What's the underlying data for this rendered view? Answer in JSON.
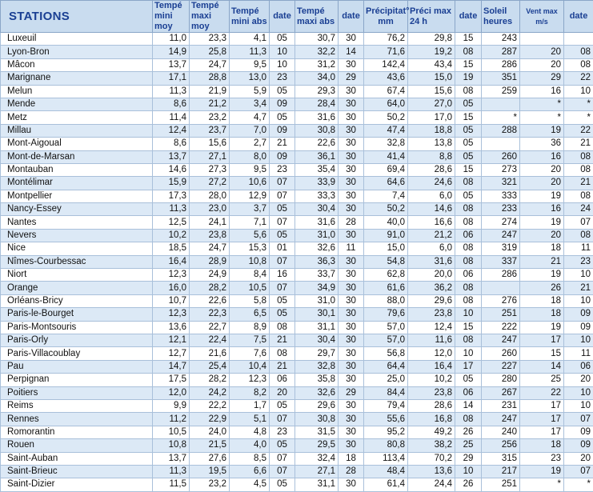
{
  "headers": {
    "stations": "STATIONS",
    "tmin_moy": "Tempé mini moy",
    "tmax_moy": "Tempé maxi moy",
    "tmin_abs": "Tempé mini abs",
    "date1": "date",
    "tmax_abs": "Tempé maxi abs",
    "date2": "date",
    "precip": "Précipitat° mm",
    "precip_max": "Préci max 24 h",
    "date3": "date",
    "soleil": "Soleil heures",
    "vent": "Vent max m/s",
    "date4": "date"
  },
  "rows": [
    [
      "Luxeuil",
      "11,0",
      "23,3",
      "4,1",
      "05",
      "30,7",
      "30",
      "76,2",
      "29,8",
      "15",
      "243",
      "",
      ""
    ],
    [
      "Lyon-Bron",
      "14,9",
      "25,8",
      "11,3",
      "10",
      "32,2",
      "14",
      "71,6",
      "19,2",
      "08",
      "287",
      "20",
      "08"
    ],
    [
      "Mâcon",
      "13,7",
      "24,7",
      "9,5",
      "10",
      "31,2",
      "30",
      "142,4",
      "43,4",
      "15",
      "286",
      "20",
      "08"
    ],
    [
      "Marignane",
      "17,1",
      "28,8",
      "13,0",
      "23",
      "34,0",
      "29",
      "43,6",
      "15,0",
      "19",
      "351",
      "29",
      "22"
    ],
    [
      "Melun",
      "11,3",
      "21,9",
      "5,9",
      "05",
      "29,3",
      "30",
      "67,4",
      "15,6",
      "08",
      "259",
      "16",
      "10"
    ],
    [
      "Mende",
      "8,6",
      "21,2",
      "3,4",
      "09",
      "28,4",
      "30",
      "64,0",
      "27,0",
      "05",
      "",
      "*",
      "*"
    ],
    [
      "Metz",
      "11,4",
      "23,2",
      "4,7",
      "05",
      "31,6",
      "30",
      "50,2",
      "17,0",
      "15",
      "*",
      "*",
      "*"
    ],
    [
      "Millau",
      "12,4",
      "23,7",
      "7,0",
      "09",
      "30,8",
      "30",
      "47,4",
      "18,8",
      "05",
      "288",
      "19",
      "22"
    ],
    [
      "Mont-Aigoual",
      "8,6",
      "15,6",
      "2,7",
      "21",
      "22,6",
      "30",
      "32,8",
      "13,8",
      "05",
      "",
      "36",
      "21"
    ],
    [
      "Mont-de-Marsan",
      "13,7",
      "27,1",
      "8,0",
      "09",
      "36,1",
      "30",
      "41,4",
      "8,8",
      "05",
      "260",
      "16",
      "08"
    ],
    [
      "Montauban",
      "14,6",
      "27,3",
      "9,5",
      "23",
      "35,4",
      "30",
      "69,4",
      "28,6",
      "15",
      "273",
      "20",
      "08"
    ],
    [
      "Montélimar",
      "15,9",
      "27,2",
      "10,6",
      "07",
      "33,9",
      "30",
      "64,6",
      "24,6",
      "08",
      "321",
      "20",
      "21"
    ],
    [
      "Montpellier",
      "17,3",
      "28,0",
      "12,9",
      "07",
      "33,3",
      "30",
      "7,4",
      "6,0",
      "05",
      "333",
      "19",
      "08"
    ],
    [
      "Nancy-Essey",
      "11,3",
      "23,0",
      "3,7",
      "05",
      "30,4",
      "30",
      "50,2",
      "14,6",
      "08",
      "233",
      "16",
      "24"
    ],
    [
      "Nantes",
      "12,5",
      "24,1",
      "7,1",
      "07",
      "31,6",
      "28",
      "40,0",
      "16,6",
      "08",
      "274",
      "19",
      "07"
    ],
    [
      "Nevers",
      "10,2",
      "23,8",
      "5,6",
      "05",
      "31,0",
      "30",
      "91,0",
      "21,2",
      "06",
      "247",
      "20",
      "08"
    ],
    [
      "Nice",
      "18,5",
      "24,7",
      "15,3",
      "01",
      "32,6",
      "11",
      "15,0",
      "6,0",
      "08",
      "319",
      "18",
      "11"
    ],
    [
      "Nîmes-Courbessac",
      "16,4",
      "28,9",
      "10,8",
      "07",
      "36,3",
      "30",
      "54,8",
      "31,6",
      "08",
      "337",
      "21",
      "23"
    ],
    [
      "Niort",
      "12,3",
      "24,9",
      "8,4",
      "16",
      "33,7",
      "30",
      "62,8",
      "20,0",
      "06",
      "286",
      "19",
      "10"
    ],
    [
      "Orange",
      "16,0",
      "28,2",
      "10,5",
      "07",
      "34,9",
      "30",
      "61,6",
      "36,2",
      "08",
      "",
      "26",
      "21"
    ],
    [
      "Orléans-Bricy",
      "10,7",
      "22,6",
      "5,8",
      "05",
      "31,0",
      "30",
      "88,0",
      "29,6",
      "08",
      "276",
      "18",
      "10"
    ],
    [
      "Paris-le-Bourget",
      "12,3",
      "22,3",
      "6,5",
      "05",
      "30,1",
      "30",
      "79,6",
      "23,8",
      "10",
      "251",
      "18",
      "09"
    ],
    [
      "Paris-Montsouris",
      "13,6",
      "22,7",
      "8,9",
      "08",
      "31,1",
      "30",
      "57,0",
      "12,4",
      "15",
      "222",
      "19",
      "09"
    ],
    [
      "Paris-Orly",
      "12,1",
      "22,4",
      "7,5",
      "21",
      "30,4",
      "30",
      "57,0",
      "11,6",
      "08",
      "247",
      "17",
      "10"
    ],
    [
      "Paris-Villacoublay",
      "12,7",
      "21,6",
      "7,6",
      "08",
      "29,7",
      "30",
      "56,8",
      "12,0",
      "10",
      "260",
      "15",
      "11"
    ],
    [
      "Pau",
      "14,7",
      "25,4",
      "10,4",
      "21",
      "32,8",
      "30",
      "64,4",
      "16,4",
      "17",
      "227",
      "14",
      "06"
    ],
    [
      "Perpignan",
      "17,5",
      "28,2",
      "12,3",
      "06",
      "35,8",
      "30",
      "25,0",
      "10,2",
      "05",
      "280",
      "25",
      "20"
    ],
    [
      "Poitiers",
      "12,0",
      "24,2",
      "8,2",
      "20",
      "32,6",
      "29",
      "84,4",
      "23,8",
      "06",
      "267",
      "22",
      "10"
    ],
    [
      "Reims",
      "9,9",
      "22,2",
      "1,7",
      "05",
      "29,6",
      "30",
      "79,4",
      "28,6",
      "14",
      "231",
      "17",
      "10"
    ],
    [
      "Rennes",
      "11,2",
      "22,9",
      "5,1",
      "07",
      "30,8",
      "30",
      "55,6",
      "16,8",
      "08",
      "247",
      "17",
      "07"
    ],
    [
      "Romorantin",
      "10,5",
      "24,0",
      "4,8",
      "23",
      "31,5",
      "30",
      "95,2",
      "49,2",
      "26",
      "240",
      "17",
      "09"
    ],
    [
      "Rouen",
      "10,8",
      "21,5",
      "4,0",
      "05",
      "29,5",
      "30",
      "80,8",
      "38,2",
      "25",
      "256",
      "18",
      "09"
    ],
    [
      "Saint-Auban",
      "13,7",
      "27,6",
      "8,5",
      "07",
      "32,4",
      "18",
      "113,4",
      "70,2",
      "29",
      "315",
      "23",
      "20"
    ],
    [
      "Saint-Brieuc",
      "11,3",
      "19,5",
      "6,6",
      "07",
      "27,1",
      "28",
      "48,4",
      "13,6",
      "10",
      "217",
      "19",
      "07"
    ],
    [
      "Saint-Dizier",
      "11,5",
      "23,2",
      "4,5",
      "05",
      "31,1",
      "30",
      "61,4",
      "24,4",
      "26",
      "251",
      "*",
      "*"
    ]
  ]
}
